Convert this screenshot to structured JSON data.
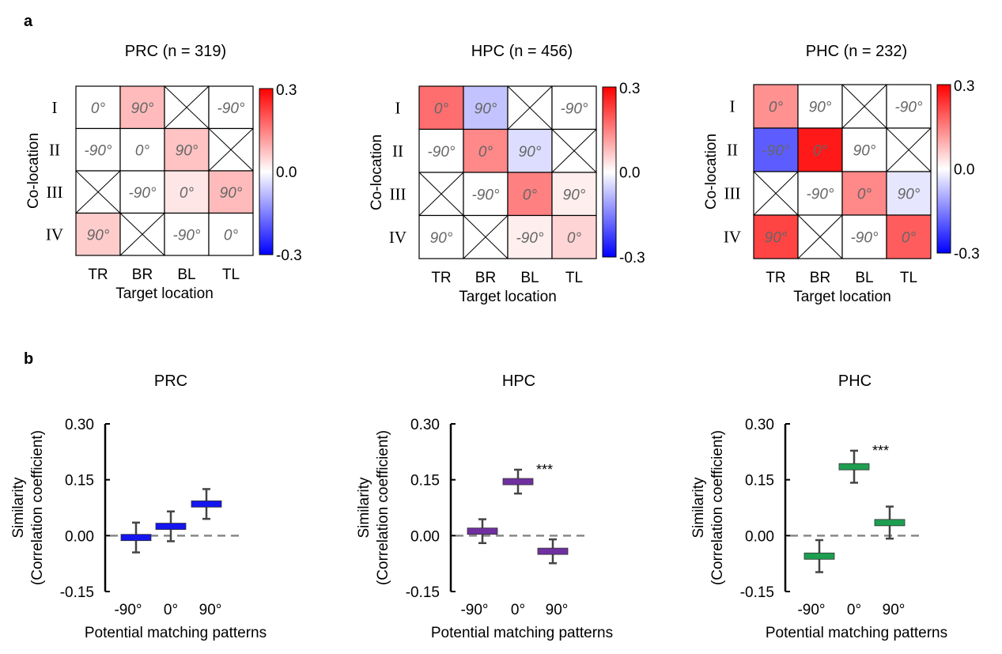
{
  "panel_labels": {
    "a": "a",
    "b": "b"
  },
  "chart_data": [
    {
      "type": "heatmap",
      "title": "PRC (n = 319)",
      "xlabel": "Target location",
      "ylabel": "Co-location",
      "x_categories": [
        "TR",
        "BR",
        "BL",
        "TL"
      ],
      "y_categories": [
        "I",
        "II",
        "III",
        "IV"
      ],
      "cell_labels": [
        [
          "0°",
          "90°",
          "",
          "-90°"
        ],
        [
          "-90°",
          "0°",
          "90°",
          ""
        ],
        [
          "",
          "-90°",
          "0°",
          "90°"
        ],
        [
          "90°",
          "",
          "-90°",
          "0°"
        ]
      ],
      "values": [
        [
          0.0,
          0.08,
          null,
          0.0
        ],
        [
          0.0,
          0.0,
          0.07,
          null
        ],
        [
          null,
          0.0,
          0.03,
          0.08
        ],
        [
          0.06,
          null,
          0.0,
          0.0
        ]
      ],
      "colorbar": {
        "min": -0.3,
        "max": 0.3,
        "ticks": [
          "0.3",
          "0.0",
          "-0.3"
        ]
      }
    },
    {
      "type": "heatmap",
      "title": "HPC (n = 456)",
      "xlabel": "Target location",
      "ylabel": "Co-location",
      "x_categories": [
        "TR",
        "BR",
        "BL",
        "TL"
      ],
      "y_categories": [
        "I",
        "II",
        "III",
        "IV"
      ],
      "cell_labels": [
        [
          "0°",
          "90°",
          "",
          "-90°"
        ],
        [
          "-90°",
          "0°",
          "90°",
          ""
        ],
        [
          "",
          "-90°",
          "0°",
          "90°"
        ],
        [
          "90°",
          "",
          "-90°",
          "0°"
        ]
      ],
      "values": [
        [
          0.17,
          -0.07,
          null,
          0.0
        ],
        [
          0.0,
          0.14,
          -0.04,
          null
        ],
        [
          null,
          0.0,
          0.15,
          0.02
        ],
        [
          0.0,
          null,
          0.02,
          0.05
        ]
      ],
      "colorbar": {
        "min": -0.3,
        "max": 0.3,
        "ticks": [
          "0.3",
          "0.0",
          "-0.3"
        ]
      }
    },
    {
      "type": "heatmap",
      "title": "PHC (n = 232)",
      "xlabel": "Target location",
      "ylabel": "Co-location",
      "x_categories": [
        "TR",
        "BR",
        "BL",
        "TL"
      ],
      "y_categories": [
        "I",
        "II",
        "III",
        "IV"
      ],
      "cell_labels": [
        [
          "0°",
          "90°",
          "",
          "-90°"
        ],
        [
          "-90°",
          "0°",
          "90°",
          ""
        ],
        [
          "",
          "-90°",
          "0°",
          "90°"
        ],
        [
          "90°",
          "",
          "-90°",
          "0°"
        ]
      ],
      "values": [
        [
          0.13,
          0.0,
          null,
          0.0
        ],
        [
          -0.19,
          0.27,
          0.0,
          null
        ],
        [
          null,
          0.0,
          0.14,
          -0.03
        ],
        [
          0.22,
          null,
          0.0,
          0.19
        ]
      ],
      "colorbar": {
        "min": -0.3,
        "max": 0.3,
        "ticks": [
          "0.3",
          "0.0",
          "-0.3"
        ]
      }
    },
    {
      "type": "errorbar",
      "title": "PRC",
      "xlabel": "Potential matching patterns",
      "ylabel": "Similarity",
      "ylabel2": "(Correlation coefficient)",
      "categories": [
        "-90°",
        "0°",
        "90°"
      ],
      "values": [
        -0.005,
        0.025,
        0.085
      ],
      "errors": [
        0.04,
        0.04,
        0.04
      ],
      "color": "#1515ee",
      "ylim": [
        -0.15,
        0.3
      ],
      "yticks": [
        "0.30",
        "0.15",
        "0.00",
        "-0.15"
      ],
      "significance": [
        "",
        "",
        ""
      ]
    },
    {
      "type": "errorbar",
      "title": "HPC",
      "xlabel": "Potential matching patterns",
      "ylabel": "Similarity",
      "ylabel2": "(Correlation coefficient)",
      "categories": [
        "-90°",
        "0°",
        "90°"
      ],
      "values": [
        0.012,
        0.145,
        -0.042
      ],
      "errors": [
        0.032,
        0.032,
        0.032
      ],
      "color": "#7030a0",
      "ylim": [
        -0.15,
        0.3
      ],
      "yticks": [
        "0.30",
        "0.15",
        "0.00",
        "-0.15"
      ],
      "significance": [
        "",
        "***",
        ""
      ]
    },
    {
      "type": "errorbar",
      "title": "PHC",
      "xlabel": "Potential matching patterns",
      "ylabel": "Similarity",
      "ylabel2": "(Correlation coefficient)",
      "categories": [
        "-90°",
        "0°",
        "90°"
      ],
      "values": [
        -0.055,
        0.185,
        0.035
      ],
      "errors": [
        0.043,
        0.043,
        0.043
      ],
      "color": "#1e9e50",
      "ylim": [
        -0.15,
        0.3
      ],
      "yticks": [
        "0.30",
        "0.15",
        "0.00",
        "-0.15"
      ],
      "significance": [
        "",
        "***",
        ""
      ]
    }
  ]
}
